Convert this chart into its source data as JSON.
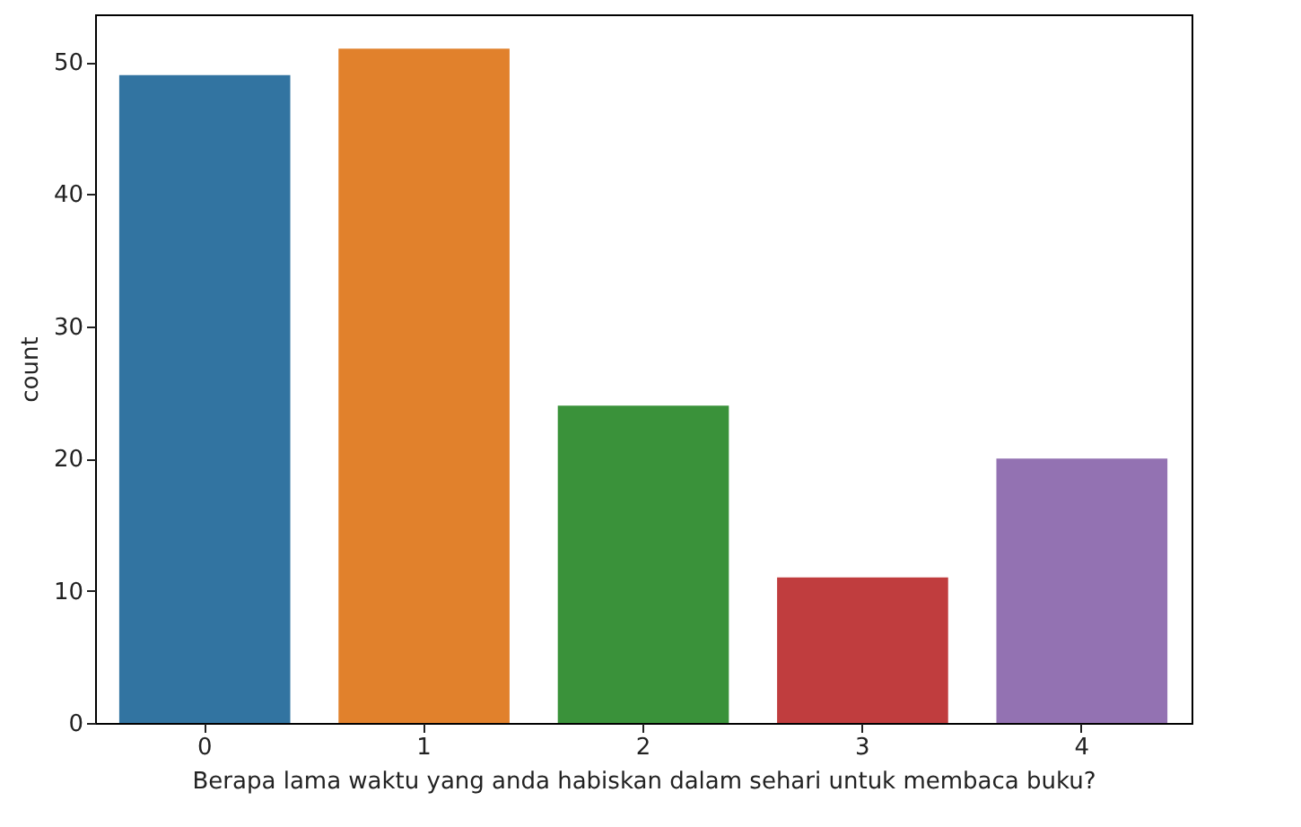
{
  "chart_data": {
    "type": "bar",
    "xlabel": "Berapa lama waktu yang anda habiskan dalam sehari untuk membaca buku?",
    "ylabel": "count",
    "categories": [
      "0",
      "1",
      "2",
      "3",
      "4"
    ],
    "values": [
      49,
      51,
      24,
      11,
      20
    ],
    "colors": [
      "#3274a1",
      "#e1812c",
      "#3a923a",
      "#c03d3e",
      "#9372b2"
    ],
    "ylim": [
      0,
      53.6
    ],
    "yticks": [
      0,
      10,
      20,
      30,
      40,
      50
    ],
    "grid": false,
    "legend": false
  }
}
